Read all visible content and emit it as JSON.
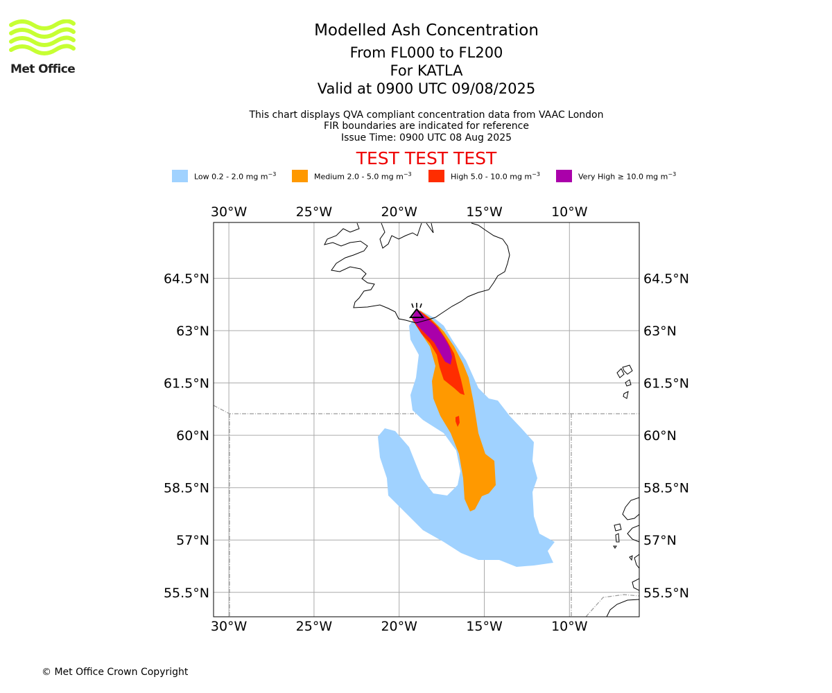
{
  "header": {
    "title": "Modelled Ash Concentration",
    "level_range": "From FL000 to FL200",
    "volcano": "For KATLA",
    "valid_time": "Valid at 0900 UTC 09/08/2025",
    "note1": "This chart displays QVA compliant concentration data from VAAC London",
    "note2": "FIR boundaries are indicated for reference",
    "issue_time": "Issue Time: 0900 UTC 08 Aug 2025",
    "test_banner": "TEST TEST TEST"
  },
  "logo": {
    "text": "Met Office",
    "color": "#c6ff33"
  },
  "legend": [
    {
      "label": "Low 0.2 - 2.0 mg m",
      "color": "#a0d2ff"
    },
    {
      "label": "Medium 2.0 - 5.0 mg m",
      "color": "#ff9900"
    },
    {
      "label": "High 5.0 - 10.0 mg m",
      "color": "#ff2d00"
    },
    {
      "label": "Very High ≥ 10.0 mg m",
      "color": "#aa00aa"
    }
  ],
  "legend_unit_exponent": "−3",
  "map": {
    "lon_ticks": [
      "30°W",
      "25°W",
      "20°W",
      "15°W",
      "10°W"
    ],
    "lat_ticks": [
      "64.5°N",
      "63°N",
      "61.5°N",
      "60°N",
      "58.5°N",
      "57°N",
      "55.5°N"
    ],
    "lon_values": [
      -30,
      -25,
      -20,
      -15,
      -10
    ],
    "lat_values": [
      64.5,
      63,
      61.5,
      60,
      58.5,
      57,
      55.5
    ],
    "extent": {
      "lon_min": -30.9,
      "lon_max": -5.9,
      "lat_min": 54.8,
      "lat_max": 66.1
    },
    "volcano_location": {
      "lon": -19.05,
      "lat": 63.63
    },
    "grid": true
  },
  "footer": {
    "copyright": "© Met Office Crown Copyright"
  }
}
